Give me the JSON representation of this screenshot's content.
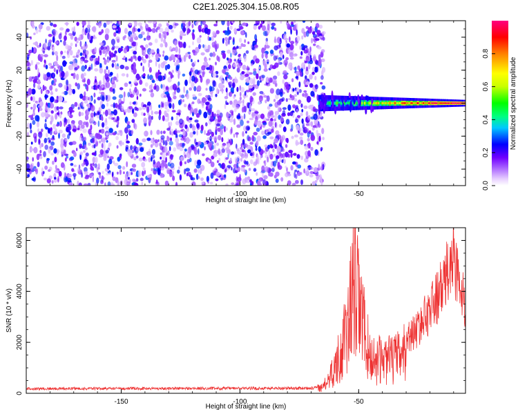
{
  "chart_data": [
    {
      "type": "heatmap",
      "title": "C2E1.2025.304.15.08.R05",
      "xlabel": "Height of straight line (km)",
      "ylabel": "Frequency (Hz)",
      "xlim": [
        -190,
        -5
      ],
      "ylim": [
        -50,
        50
      ],
      "x_ticks": [
        -150,
        -100,
        -50
      ],
      "x_tick_labels": [
        "-150",
        "-100",
        "-50"
      ],
      "y_ticks": [
        -40,
        -20,
        0,
        20,
        40
      ],
      "y_tick_labels": [
        "-40",
        "-20",
        "0",
        "20",
        "40"
      ],
      "noise_region": {
        "x_range": [
          -190,
          -67
        ],
        "freq_range": [
          -50,
          50
        ],
        "typical_amplitude": [
          0.05,
          0.25
        ]
      },
      "signal_band": {
        "x_range": [
          -67,
          -5
        ],
        "center_freq": 0,
        "half_width_hz": [
          5,
          2
        ],
        "peak_amplitude": 1.0
      },
      "colorbar": {
        "label": "Normalized spectral amplitude",
        "range": [
          0,
          1
        ],
        "ticks": [
          0,
          0.2,
          0.4,
          0.6,
          0.8
        ],
        "tick_labels": [
          "0.0",
          "0.2",
          "0.4",
          "0.6",
          "0.8"
        ],
        "colors": [
          "#ffffff",
          "#e8d0ff",
          "#b070ff",
          "#7000ff",
          "#0000ff",
          "#00c8ff",
          "#00ff80",
          "#00ff00",
          "#c8ff00",
          "#ffff00",
          "#ff8000",
          "#ff0000",
          "#ff0080"
        ]
      }
    },
    {
      "type": "line",
      "xlabel": "Height of straight line (km)",
      "ylabel": "SNR (10 * v/v)",
      "xlim": [
        -190,
        -5
      ],
      "ylim": [
        0,
        6500
      ],
      "x_ticks": [
        -150,
        -100,
        -50
      ],
      "x_tick_labels": [
        "-150",
        "-100",
        "-50"
      ],
      "y_ticks": [
        0,
        2000,
        4000,
        6000
      ],
      "y_tick_labels": [
        "0",
        "2000",
        "4000",
        "6000"
      ],
      "color": "#ee3333",
      "series_name": "SNR",
      "key_points": [
        {
          "x": -190,
          "y": 180
        },
        {
          "x": -70,
          "y": 200
        },
        {
          "x": -65,
          "y": 350
        },
        {
          "x": -60,
          "y": 1500
        },
        {
          "x": -55,
          "y": 3500
        },
        {
          "x": -52,
          "y": 6500
        },
        {
          "x": -45,
          "y": 2000
        },
        {
          "x": -35,
          "y": 2000
        },
        {
          "x": -25,
          "y": 3000
        },
        {
          "x": -15,
          "y": 4800
        },
        {
          "x": -10,
          "y": 6300
        },
        {
          "x": -5,
          "y": 3800
        }
      ]
    }
  ]
}
